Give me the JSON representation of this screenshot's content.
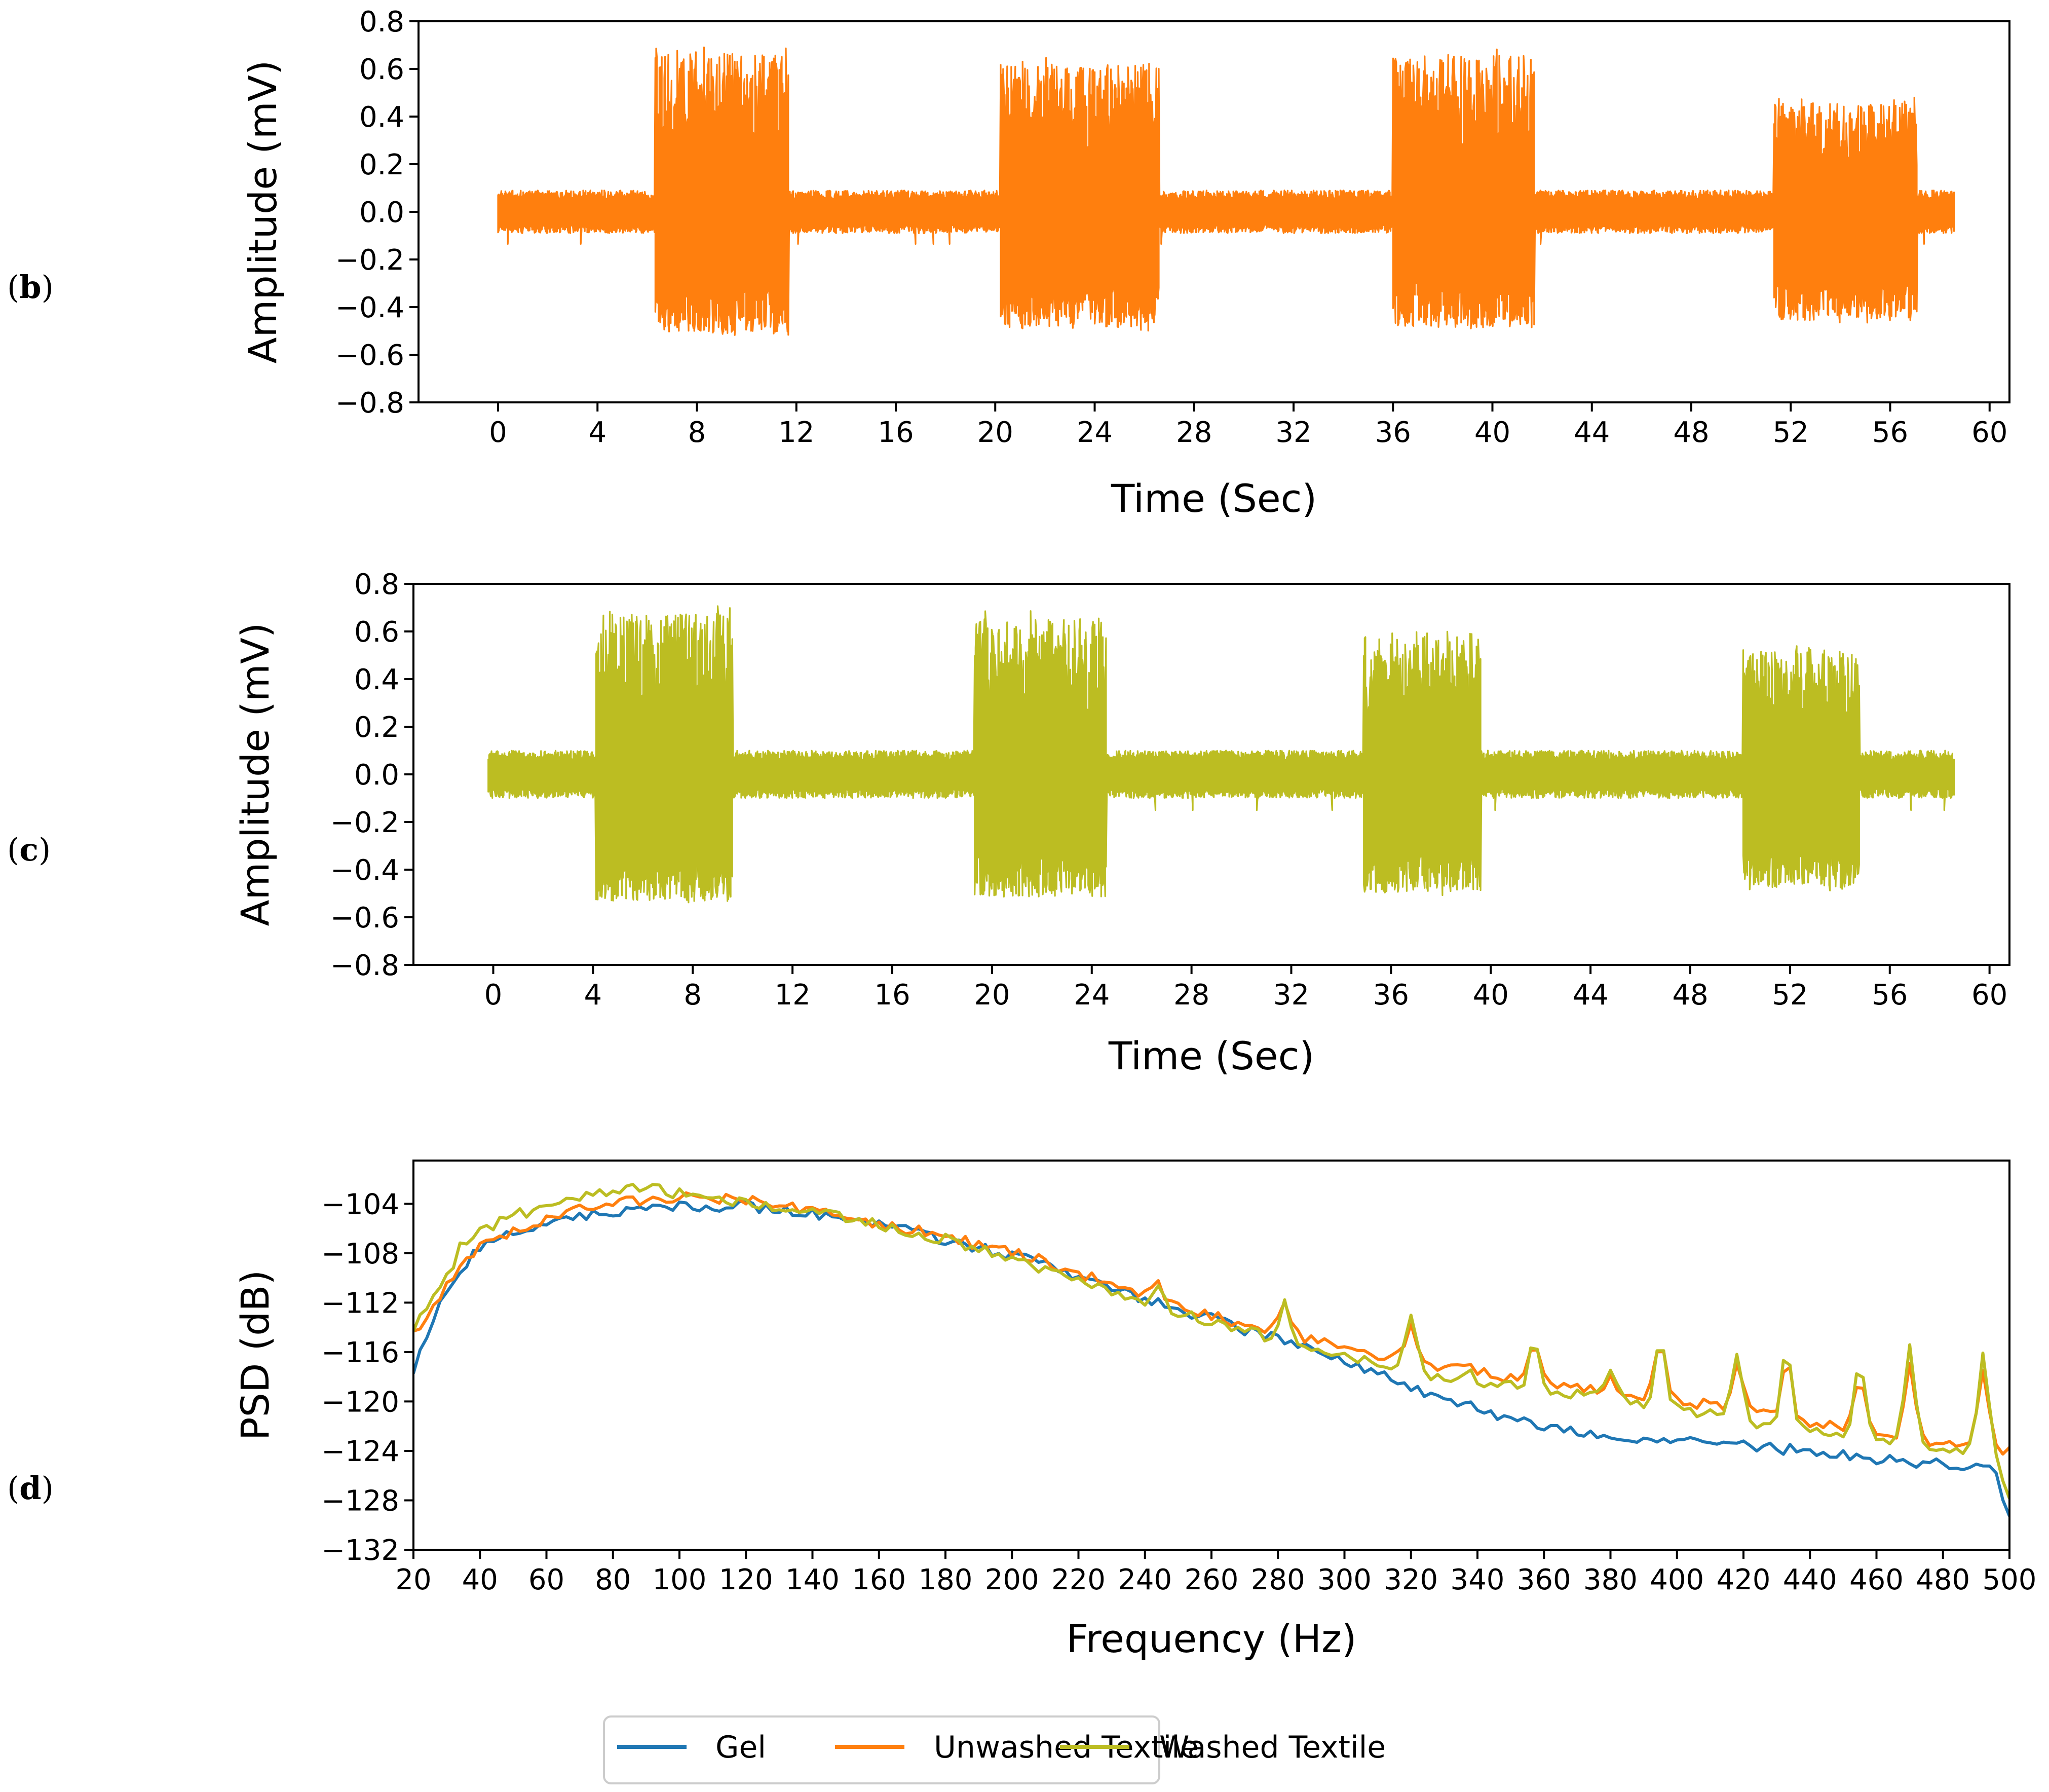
{
  "chart_data": [
    {
      "id": "b",
      "type": "line",
      "panel_label": "b",
      "xlabel": "Time (Sec)",
      "ylabel": "Amplitude (mV)",
      "xlim": [
        -3.2,
        60.8
      ],
      "ylim": [
        -0.8,
        0.8
      ],
      "xticks": [
        0,
        4,
        8,
        12,
        16,
        20,
        24,
        28,
        32,
        36,
        40,
        44,
        48,
        52,
        56,
        60
      ],
      "yticks": [
        -0.8,
        -0.6,
        -0.4,
        -0.2,
        0.0,
        0.2,
        0.4,
        0.6,
        0.8
      ],
      "ytick_labels": [
        "−0.8",
        "−0.6",
        "−0.4",
        "−0.2",
        "0.0",
        "0.2",
        "0.4",
        "0.6",
        "0.8"
      ],
      "color": "#ff7f0e",
      "signal_range": [
        0,
        58.6
      ],
      "baseline_band": [
        -0.09,
        0.09
      ],
      "bursts": [
        {
          "start": 6.3,
          "end": 11.7,
          "top": 0.7,
          "bottom": -0.52
        },
        {
          "start": 20.2,
          "end": 26.6,
          "top": 0.65,
          "bottom": -0.5
        },
        {
          "start": 36.0,
          "end": 41.7,
          "top": 0.69,
          "bottom": -0.5
        },
        {
          "start": 51.3,
          "end": 57.1,
          "top": 0.48,
          "bottom": -0.47
        }
      ]
    },
    {
      "id": "c",
      "type": "line",
      "panel_label": "c",
      "xlabel": "Time (Sec)",
      "ylabel": "Amplitude (mV)",
      "xlim": [
        -3.2,
        60.8
      ],
      "ylim": [
        -0.8,
        0.8
      ],
      "xticks": [
        0,
        4,
        8,
        12,
        16,
        20,
        24,
        28,
        32,
        36,
        40,
        44,
        48,
        52,
        56,
        60
      ],
      "yticks": [
        -0.8,
        -0.6,
        -0.4,
        -0.2,
        0.0,
        0.2,
        0.4,
        0.6,
        0.8
      ],
      "ytick_labels": [
        "−0.8",
        "−0.6",
        "−0.4",
        "−0.2",
        "0.0",
        "0.2",
        "0.4",
        "0.6",
        "0.8"
      ],
      "color": "#bcbd22",
      "signal_range": [
        -0.2,
        58.6
      ],
      "baseline_band": [
        -0.1,
        0.1
      ],
      "bursts": [
        {
          "start": 4.1,
          "end": 9.6,
          "top": 0.71,
          "bottom": -0.55
        },
        {
          "start": 19.3,
          "end": 24.6,
          "top": 0.69,
          "bottom": -0.53
        },
        {
          "start": 34.9,
          "end": 39.6,
          "top": 0.61,
          "bottom": -0.51
        },
        {
          "start": 50.1,
          "end": 54.8,
          "top": 0.55,
          "bottom": -0.49
        }
      ]
    },
    {
      "id": "d",
      "type": "line",
      "panel_label": "d",
      "xlabel": "Frequency (Hz)",
      "ylabel": "PSD (dB)",
      "xlim": [
        20,
        500
      ],
      "ylim": [
        -132,
        -100.5
      ],
      "xticks": [
        20,
        40,
        60,
        80,
        100,
        120,
        140,
        160,
        180,
        200,
        220,
        240,
        260,
        280,
        300,
        320,
        340,
        360,
        380,
        400,
        420,
        440,
        460,
        480,
        500
      ],
      "yticks": [
        -132,
        -128,
        -124,
        -120,
        -116,
        -112,
        -108,
        -104
      ],
      "ytick_labels": [
        "−132",
        "−128",
        "−124",
        "−120",
        "−116",
        "−112",
        "−108",
        "−104"
      ],
      "series": [
        {
          "name": "Gel",
          "color": "#1f77b4",
          "x": [
            20,
            25,
            30,
            35,
            40,
            50,
            60,
            70,
            80,
            90,
            100,
            110,
            120,
            130,
            140,
            150,
            160,
            170,
            180,
            190,
            200,
            210,
            220,
            230,
            240,
            250,
            260,
            270,
            280,
            290,
            300,
            310,
            320,
            330,
            340,
            350,
            360,
            370,
            380,
            390,
            400,
            410,
            420,
            430,
            440,
            450,
            460,
            470,
            480,
            490,
            495,
            500
          ],
          "y": [
            -117.5,
            -114,
            -111,
            -109,
            -107.5,
            -106.2,
            -105.5,
            -104.9,
            -104.6,
            -104.4,
            -104.3,
            -104.3,
            -104.2,
            -104.4,
            -104.8,
            -105.3,
            -105.8,
            -106.3,
            -106.9,
            -107.5,
            -108.2,
            -109,
            -109.9,
            -110.8,
            -111.7,
            -112.5,
            -113.3,
            -114.2,
            -115,
            -115.9,
            -116.9,
            -117.8,
            -118.8,
            -119.8,
            -120.6,
            -121.4,
            -122,
            -122.4,
            -122.7,
            -123,
            -123.2,
            -123.4,
            -123.6,
            -123.8,
            -124,
            -124.4,
            -124.7,
            -124.9,
            -125,
            -125.2,
            -125.5,
            -129
          ]
        },
        {
          "name": "Unwashed Textile",
          "color": "#ff7f0e",
          "x": [
            20,
            25,
            30,
            35,
            40,
            50,
            60,
            70,
            80,
            90,
            100,
            110,
            120,
            130,
            140,
            150,
            160,
            170,
            180,
            190,
            200,
            210,
            220,
            230,
            240,
            250,
            260,
            270,
            280,
            290,
            300,
            310,
            320,
            330,
            340,
            350,
            360,
            370,
            380,
            390,
            400,
            410,
            420,
            430,
            440,
            450,
            460,
            470,
            480,
            490,
            495,
            500
          ],
          "y": [
            -114.5,
            -112.5,
            -110.5,
            -108.5,
            -107.5,
            -106.3,
            -105.4,
            -104.5,
            -104,
            -103.6,
            -103.5,
            -103.6,
            -103.7,
            -104,
            -104.5,
            -105.1,
            -105.6,
            -106.1,
            -106.7,
            -107.3,
            -108,
            -108.7,
            -109.6,
            -110.5,
            -111.3,
            -112.2,
            -113,
            -113.8,
            -114.4,
            -115,
            -115.6,
            -116.2,
            -116.7,
            -117.2,
            -117.6,
            -118,
            -118.4,
            -118.8,
            -119.1,
            -119.5,
            -119.9,
            -120.3,
            -120.7,
            -121.2,
            -121.7,
            -122.2,
            -122.6,
            -123,
            -123.3,
            -123.5,
            -123.6,
            -124
          ]
        },
        {
          "name": "Washed Textile",
          "color": "#bcbd22",
          "x": [
            20,
            25,
            30,
            35,
            40,
            50,
            60,
            70,
            80,
            90,
            100,
            110,
            120,
            130,
            140,
            150,
            160,
            170,
            180,
            190,
            200,
            210,
            220,
            230,
            240,
            250,
            260,
            270,
            280,
            290,
            300,
            310,
            320,
            330,
            340,
            350,
            360,
            370,
            380,
            390,
            400,
            410,
            420,
            430,
            440,
            450,
            460,
            470,
            480,
            490,
            495,
            500
          ],
          "y": [
            -114,
            -112,
            -110,
            -107,
            -106.2,
            -105,
            -104.2,
            -103.5,
            -103,
            -102.7,
            -103.2,
            -103.6,
            -103.9,
            -104.2,
            -104.7,
            -105.2,
            -105.7,
            -106.3,
            -106.9,
            -107.6,
            -108.4,
            -109.3,
            -110.3,
            -111.2,
            -112,
            -112.8,
            -113.6,
            -114.3,
            -115,
            -115.7,
            -116.3,
            -116.9,
            -117.5,
            -118,
            -118.4,
            -118.8,
            -119.2,
            -119.5,
            -119.8,
            -120.2,
            -120.6,
            -121,
            -121.5,
            -122,
            -122.4,
            -122.8,
            -123.2,
            -123.5,
            -123.7,
            -123.9,
            -124,
            -128
          ]
        }
      ],
      "peaks": {
        "gel": [
          [
            333,
            -121.5
          ]
        ],
        "textile": [
          [
            244,
            -110.2
          ],
          [
            282,
            -111.5
          ],
          [
            320,
            -112.8
          ],
          [
            357,
            -114.5
          ],
          [
            395,
            -114.8
          ],
          [
            433,
            -115.8
          ],
          [
            470,
            -115.5
          ],
          [
            492,
            -116.2
          ],
          [
            418,
            -116.4
          ],
          [
            455,
            -117
          ],
          [
            380,
            -117.8
          ],
          [
            337,
            -117.2
          ]
        ]
      }
    }
  ],
  "legend": {
    "items": [
      {
        "label": "Gel",
        "color": "#1f77b4"
      },
      {
        "label": "Unwashed Textile",
        "color": "#ff7f0e"
      },
      {
        "label": "Washed Textile",
        "color": "#bcbd22"
      }
    ]
  }
}
